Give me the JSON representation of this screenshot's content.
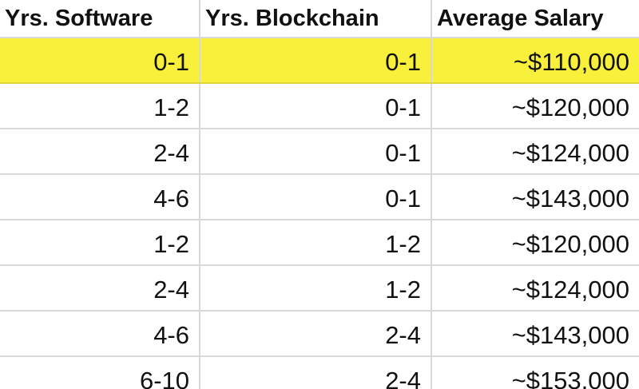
{
  "table": {
    "columns": [
      "Yrs. Software",
      "Yrs. Blockchain",
      "Average Salary"
    ],
    "rows": [
      [
        "0-1",
        "0-1",
        "~$110,000"
      ],
      [
        "1-2",
        "0-1",
        "~$120,000"
      ],
      [
        "2-4",
        "0-1",
        "~$124,000"
      ],
      [
        "4-6",
        "0-1",
        "~$143,000"
      ],
      [
        "1-2",
        "1-2",
        "~$120,000"
      ],
      [
        "2-4",
        "1-2",
        "~$124,000"
      ],
      [
        "4-6",
        "2-4",
        "~$143,000"
      ],
      [
        "6-10",
        "2-4",
        "~$153,000"
      ]
    ],
    "highlighted_row_index": 0,
    "highlight_color": "#f8f03a",
    "gridline_color": "#d9d9d9"
  }
}
